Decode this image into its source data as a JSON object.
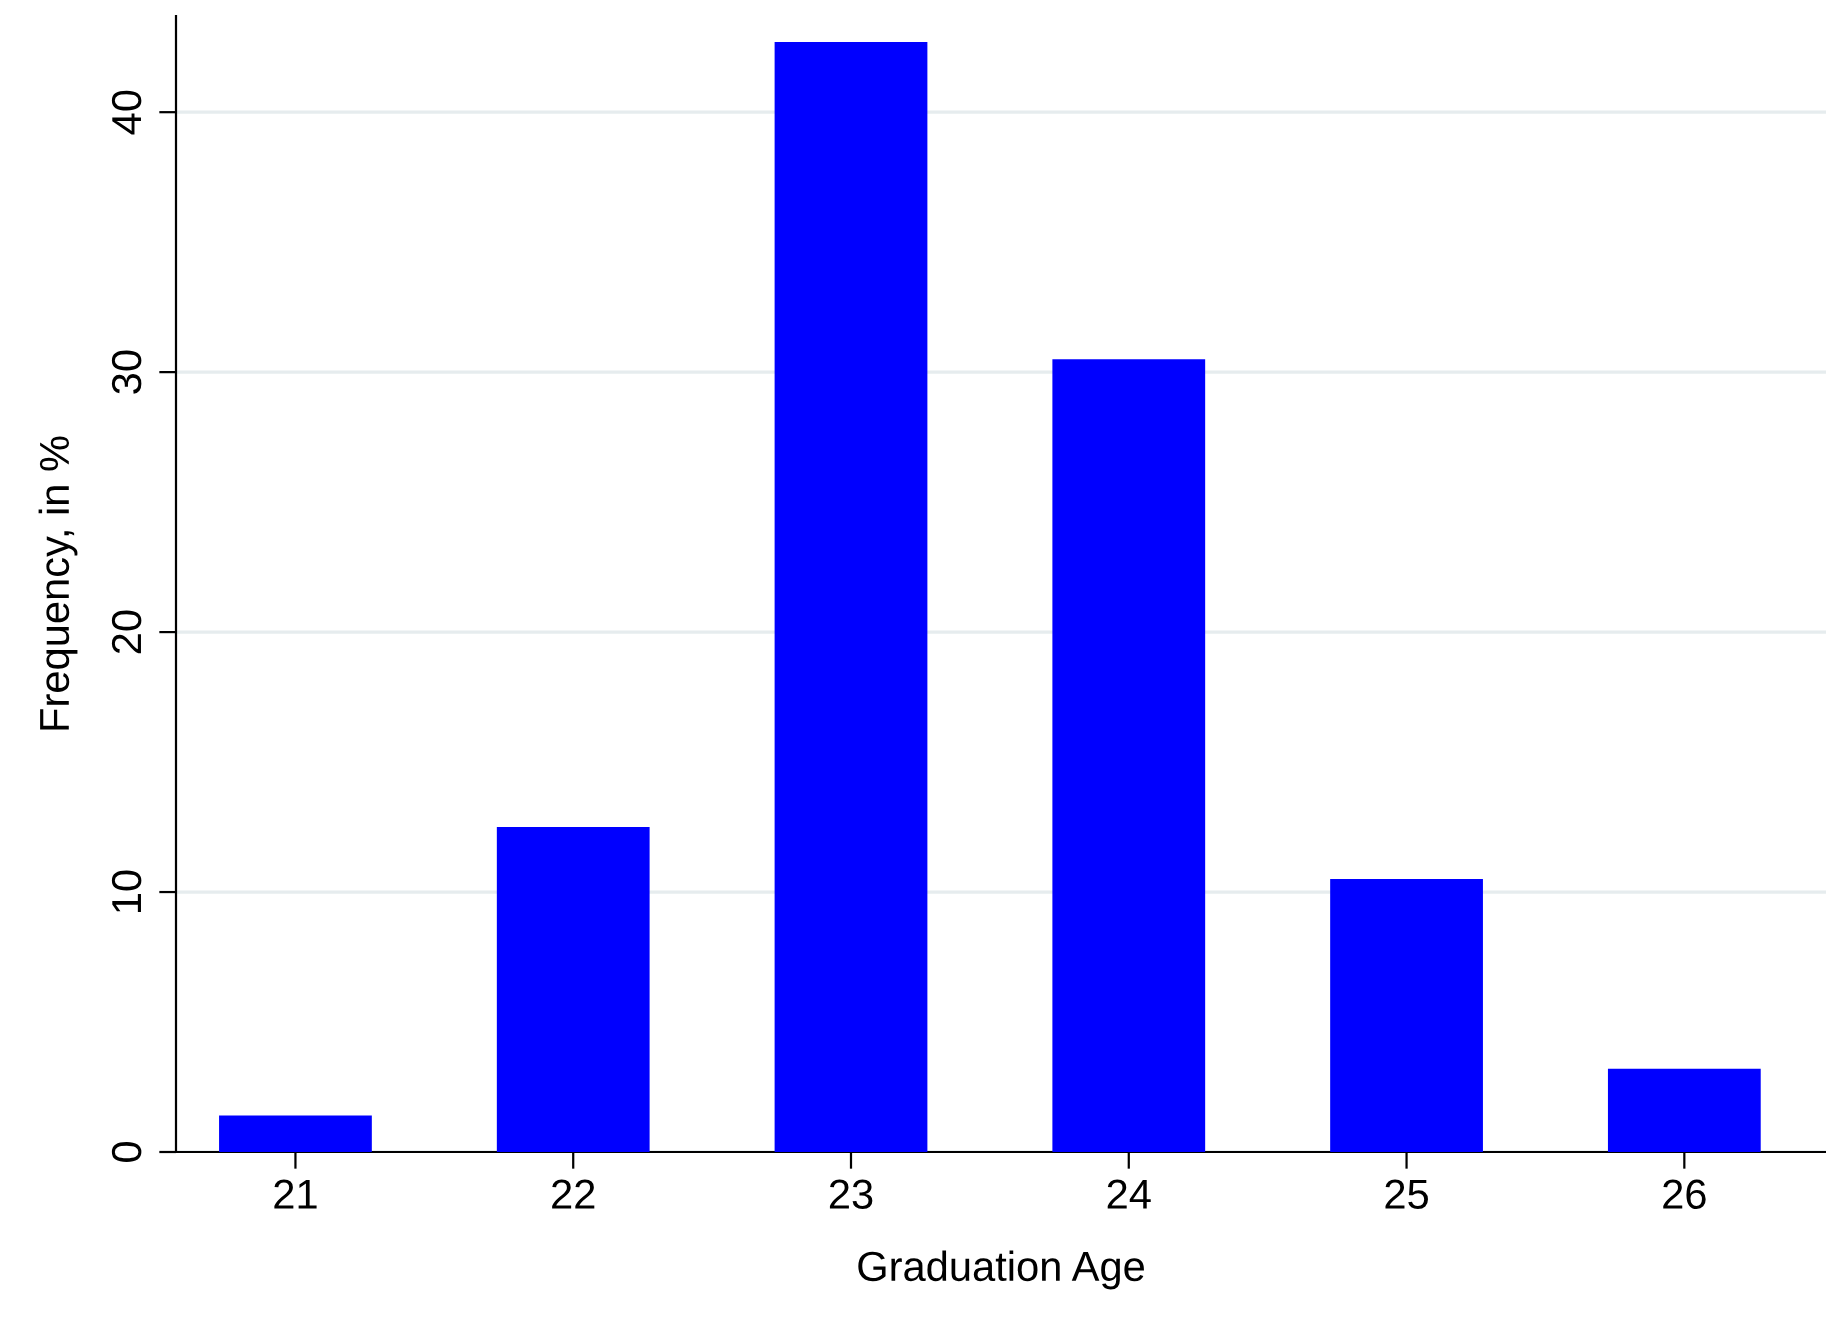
{
  "chart_data": {
    "type": "bar",
    "xlabel": "Graduation Age",
    "ylabel": "Frequency, in %",
    "categories": [
      "21",
      "22",
      "23",
      "24",
      "25",
      "26"
    ],
    "values": [
      1.4,
      12.5,
      42.7,
      30.5,
      10.5,
      3.2
    ],
    "color": "#0000ff",
    "ylim": [
      0,
      43.7
    ],
    "yticks": [
      0,
      10,
      20,
      30,
      40
    ],
    "grid": "y"
  }
}
